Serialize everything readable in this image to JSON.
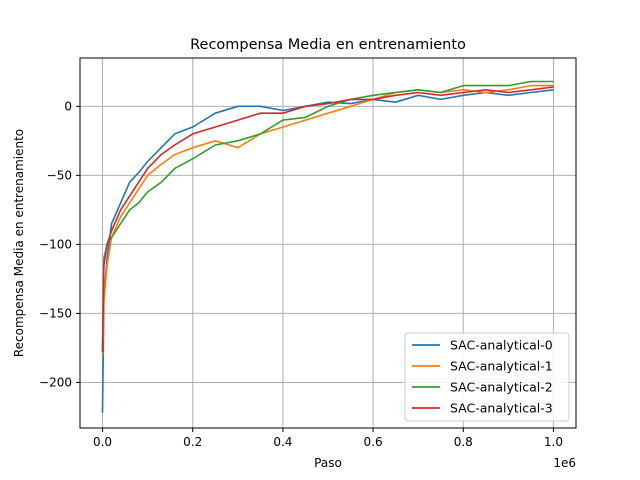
{
  "chart_data": {
    "type": "line",
    "title": "Recompensa Media en entrenamiento",
    "xlabel": "Paso",
    "ylabel": "Recompensa Media en entrenamiento",
    "x_offset_label": "1e6",
    "xlim": [
      -50000,
      1050000
    ],
    "ylim": [
      -233,
      35
    ],
    "x_ticks": [
      0,
      200000,
      400000,
      600000,
      800000,
      1000000
    ],
    "x_tick_labels": [
      "0.0",
      "0.2",
      "0.4",
      "0.6",
      "0.8",
      "1.0"
    ],
    "y_ticks": [
      -200,
      -150,
      -100,
      -50,
      0
    ],
    "y_tick_labels": [
      "−200",
      "−150",
      "−100",
      "−50",
      "0"
    ],
    "grid": true,
    "legend_position": "lower-right",
    "series": [
      {
        "name": "SAC-analytical-0",
        "color": "#1f77b4",
        "x": [
          0,
          3000,
          10000,
          20000,
          40000,
          60000,
          80000,
          100000,
          130000,
          160000,
          200000,
          250000,
          300000,
          350000,
          400000,
          450000,
          500000,
          550000,
          600000,
          650000,
          700000,
          750000,
          800000,
          850000,
          900000,
          950000,
          1000000
        ],
        "y": [
          -222,
          -140,
          -110,
          -85,
          -70,
          -55,
          -48,
          -40,
          -30,
          -20,
          -15,
          -5,
          0,
          0,
          -3,
          0,
          3,
          2,
          5,
          3,
          8,
          5,
          8,
          10,
          8,
          10,
          12
        ]
      },
      {
        "name": "SAC-analytical-1",
        "color": "#ff7f0e",
        "x": [
          0,
          3000,
          10000,
          20000,
          40000,
          60000,
          80000,
          100000,
          130000,
          160000,
          200000,
          250000,
          300000,
          350000,
          400000,
          450000,
          500000,
          550000,
          600000,
          650000,
          700000,
          750000,
          800000,
          850000,
          900000,
          950000,
          1000000
        ],
        "y": [
          -180,
          -140,
          -115,
          -95,
          -80,
          -70,
          -60,
          -50,
          -42,
          -35,
          -30,
          -25,
          -30,
          -20,
          -15,
          -10,
          -5,
          0,
          5,
          10,
          12,
          10,
          12,
          10,
          12,
          15,
          15
        ]
      },
      {
        "name": "SAC-analytical-2",
        "color": "#2ca02c",
        "x": [
          0,
          3000,
          10000,
          20000,
          40000,
          60000,
          80000,
          100000,
          130000,
          160000,
          200000,
          250000,
          300000,
          350000,
          400000,
          450000,
          500000,
          550000,
          600000,
          650000,
          700000,
          750000,
          800000,
          850000,
          900000,
          950000,
          1000000
        ],
        "y": [
          -175,
          -110,
          -100,
          -95,
          -85,
          -75,
          -70,
          -62,
          -55,
          -45,
          -38,
          -28,
          -25,
          -20,
          -10,
          -8,
          0,
          5,
          8,
          10,
          12,
          10,
          15,
          15,
          15,
          18,
          18
        ]
      },
      {
        "name": "SAC-analytical-3",
        "color": "#d62728",
        "x": [
          0,
          3000,
          10000,
          20000,
          40000,
          60000,
          80000,
          100000,
          130000,
          160000,
          200000,
          250000,
          300000,
          350000,
          400000,
          450000,
          500000,
          550000,
          600000,
          650000,
          700000,
          750000,
          800000,
          850000,
          900000,
          950000,
          1000000
        ],
        "y": [
          -178,
          -115,
          -100,
          -90,
          -75,
          -65,
          -55,
          -45,
          -35,
          -28,
          -20,
          -15,
          -10,
          -5,
          -5,
          0,
          2,
          5,
          5,
          8,
          10,
          8,
          10,
          12,
          10,
          12,
          14
        ]
      }
    ]
  }
}
